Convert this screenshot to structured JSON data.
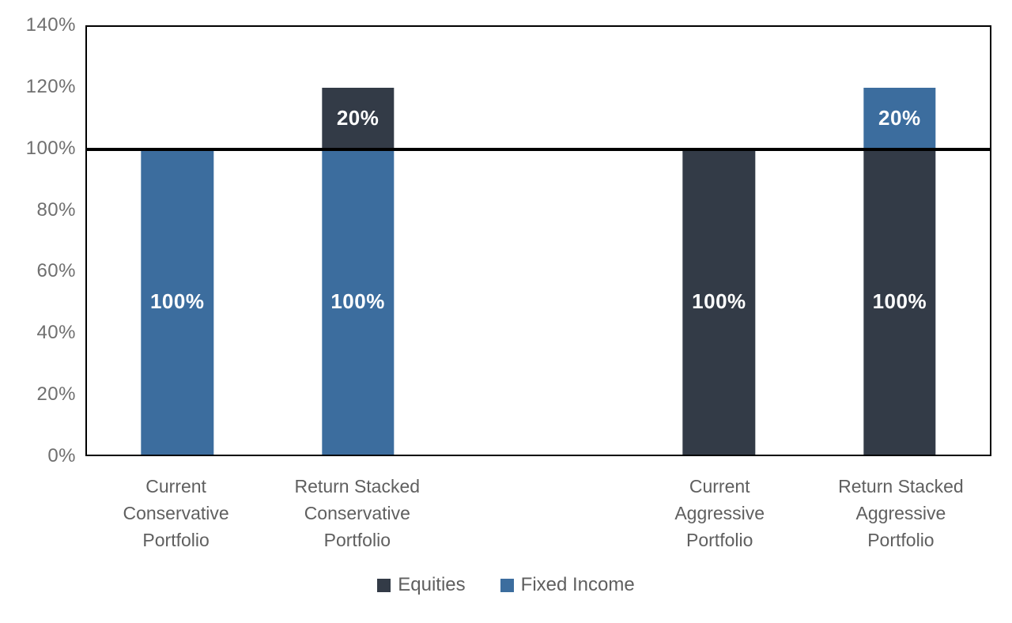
{
  "chart_data": {
    "type": "bar",
    "stacked": true,
    "title": "",
    "xlabel": "",
    "ylabel": "",
    "categories": [
      "Current\nConservative\nPortfolio",
      "Return Stacked\nConservative\nPortfolio",
      "",
      "Current\nAggressive\nPortfolio",
      "Return Stacked\nAggressive\nPortfolio"
    ],
    "series": [
      {
        "name": "Equities",
        "color": "#333B47"
      },
      {
        "name": "Fixed Income",
        "color": "#3C6D9E"
      }
    ],
    "bars": [
      {
        "category_index": 0,
        "segments_top_to_bottom": [
          {
            "series": "Fixed Income",
            "value": 100,
            "label": "100%"
          }
        ]
      },
      {
        "category_index": 1,
        "segments_top_to_bottom": [
          {
            "series": "Equities",
            "value": 20,
            "label": "20%"
          },
          {
            "series": "Fixed Income",
            "value": 100,
            "label": "100%"
          }
        ]
      },
      {
        "category_index": 3,
        "segments_top_to_bottom": [
          {
            "series": "Equities",
            "value": 100,
            "label": "100%"
          }
        ]
      },
      {
        "category_index": 4,
        "segments_top_to_bottom": [
          {
            "series": "Fixed Income",
            "value": 20,
            "label": "20%"
          },
          {
            "series": "Equities",
            "value": 100,
            "label": "100%"
          }
        ]
      }
    ],
    "y_axis": {
      "min": 0,
      "max": 140,
      "ticks": [
        "140%",
        "120%",
        "100%",
        "80%",
        "60%",
        "40%",
        "20%",
        "0%"
      ],
      "tick_values": [
        140,
        120,
        100,
        80,
        60,
        40,
        20,
        0
      ]
    },
    "reference_line": {
      "value": 100,
      "color": "#000000"
    },
    "legend": [
      {
        "label": "Equities",
        "color": "#333B47"
      },
      {
        "label": "Fixed Income",
        "color": "#3C6D9E"
      }
    ],
    "grid": false,
    "legend_position": "bottom-center",
    "bar_value_label_color": "#FFFFFF"
  }
}
